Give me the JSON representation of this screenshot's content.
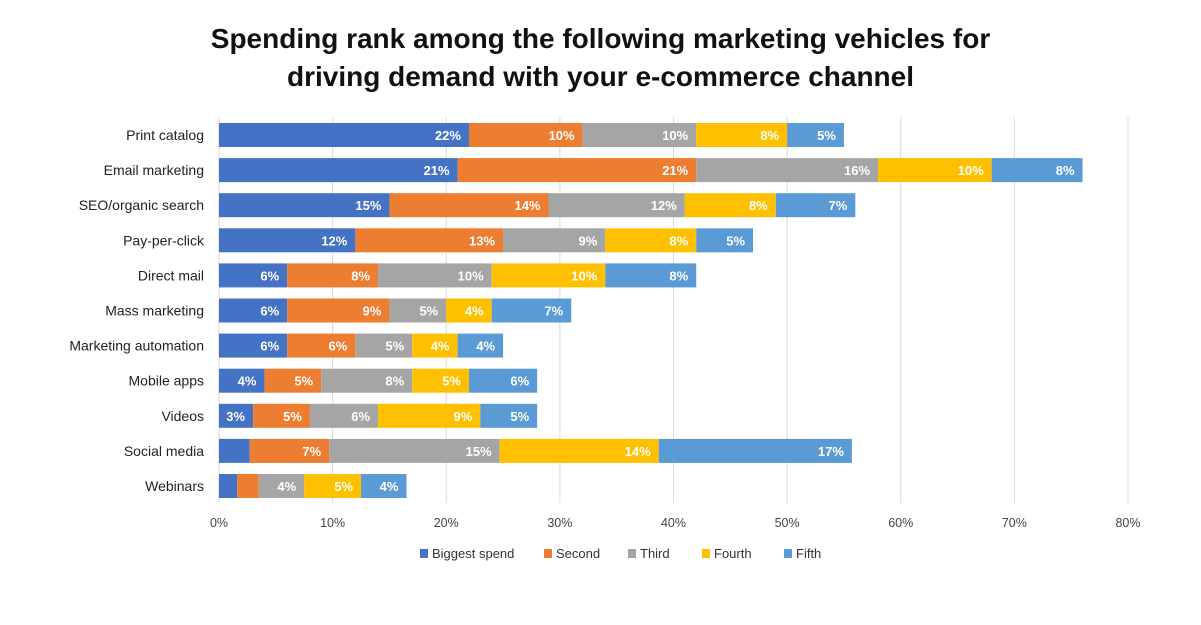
{
  "chart_data": {
    "type": "bar",
    "orientation": "horizontal",
    "stacked": true,
    "title": [
      "Spending rank among the following marketing vehicles for",
      "driving demand with your e-commerce channel"
    ],
    "categories": [
      "Print catalog",
      "Email marketing",
      "SEO/organic search",
      "Pay-per-click",
      "Direct mail",
      "Mass marketing",
      "Marketing automation",
      "Mobile apps",
      "Videos",
      "Social media",
      "Webinars"
    ],
    "series": [
      {
        "name": "Biggest spend",
        "color": "#4472C4",
        "values": [
          22,
          21,
          15,
          12,
          6,
          6,
          6,
          4,
          3,
          2.7,
          1.6
        ],
        "labels": [
          "22%",
          "21%",
          "15%",
          "12%",
          "6%",
          "6%",
          "6%",
          "4%",
          "3%",
          "",
          ""
        ]
      },
      {
        "name": "Second",
        "color": "#ED7D31",
        "values": [
          10,
          21,
          14,
          13,
          8,
          9,
          6,
          5,
          5,
          7,
          1.9
        ],
        "labels": [
          "10%",
          "21%",
          "14%",
          "13%",
          "8%",
          "9%",
          "6%",
          "5%",
          "5%",
          "7%",
          ""
        ]
      },
      {
        "name": "Third",
        "color": "#A5A5A5",
        "values": [
          10,
          16,
          12,
          9,
          10,
          5,
          5,
          8,
          6,
          15,
          4
        ],
        "labels": [
          "10%",
          "16%",
          "12%",
          "9%",
          "10%",
          "5%",
          "5%",
          "8%",
          "6%",
          "15%",
          "4%"
        ]
      },
      {
        "name": "Fourth",
        "color": "#FFC000",
        "values": [
          8,
          10,
          8,
          8,
          10,
          4,
          4,
          5,
          9,
          14,
          5
        ],
        "labels": [
          "8%",
          "10%",
          "8%",
          "8%",
          "10%",
          "4%",
          "4%",
          "5%",
          "9%",
          "14%",
          "5%"
        ]
      },
      {
        "name": "Fifth",
        "color": "#5B9BD5",
        "values": [
          5,
          8,
          7,
          5,
          8,
          7,
          4,
          6,
          5,
          17,
          4
        ],
        "labels": [
          "5%",
          "8%",
          "7%",
          "5%",
          "8%",
          "7%",
          "4%",
          "6%",
          "5%",
          "17%",
          "4%"
        ]
      }
    ],
    "xlim": [
      0,
      80
    ],
    "xticks": [
      "0%",
      "10%",
      "20%",
      "30%",
      "40%",
      "50%",
      "60%",
      "70%",
      "80%"
    ],
    "grid": true,
    "legend": "bottom"
  }
}
